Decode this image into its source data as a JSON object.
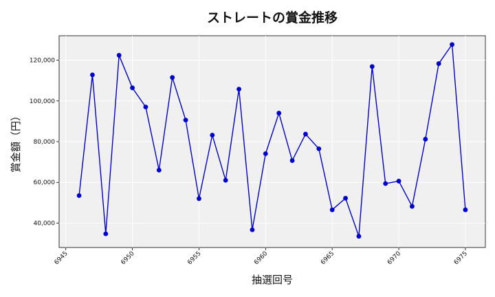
{
  "chart_data": {
    "type": "line",
    "title": "ストレートの賞金推移",
    "xlabel": "抽選回号",
    "ylabel": "賞金額（円）",
    "xlim": [
      6944.5,
      6976.5
    ],
    "ylim": [
      28000,
      132000
    ],
    "xticks": [
      6945,
      6950,
      6955,
      6960,
      6965,
      6970,
      6975
    ],
    "xtick_labels": [
      "6945",
      "6950",
      "6955",
      "6960",
      "6965",
      "6970",
      "6975"
    ],
    "yticks": [
      40000,
      60000,
      80000,
      100000,
      120000
    ],
    "ytick_labels": [
      "40,000",
      "60,000",
      "80,000",
      "100,000",
      "120,000"
    ],
    "grid": true,
    "series_color": "#0000cc",
    "plot_background": "#f0f0f0",
    "series": [
      {
        "x": [
          6946,
          6947,
          6948,
          6949,
          6950,
          6951,
          6952,
          6953,
          6954,
          6955,
          6956,
          6957,
          6958,
          6959,
          6960,
          6961,
          6962,
          6963,
          6964,
          6965,
          6966,
          6967,
          6968,
          6969,
          6970,
          6971,
          6972,
          6973,
          6974,
          6975
        ],
        "values": [
          53500,
          112800,
          34700,
          122400,
          106400,
          97000,
          66000,
          111500,
          90600,
          52000,
          83200,
          61000,
          105800,
          36700,
          74100,
          94000,
          70700,
          83700,
          76500,
          46500,
          52200,
          33500,
          116900,
          59400,
          60600,
          48200,
          81200,
          118300,
          127700,
          46500
        ]
      }
    ]
  }
}
